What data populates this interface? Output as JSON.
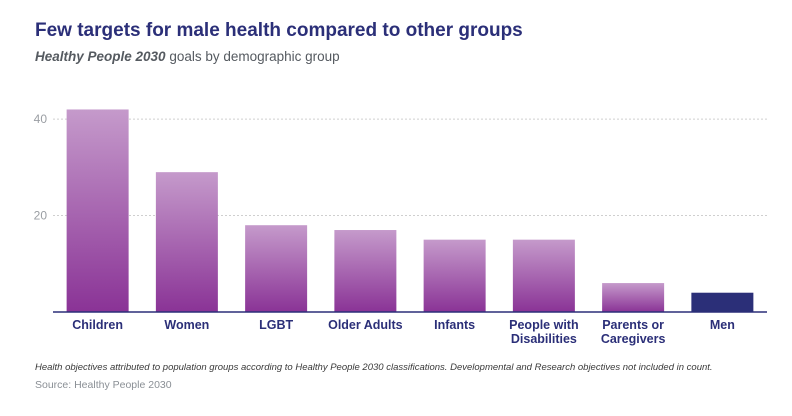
{
  "header": {
    "title": "Few targets for male health compared to other groups",
    "subtitle_em": "Healthy People 2030",
    "subtitle_rest": " goals by demographic group"
  },
  "footer": {
    "note": "Health objectives attributed to population groups according to Healthy People 2030 classifications. Developmental and Research objectives not included in count.",
    "source": "Source: Healthy People 2030"
  },
  "colors": {
    "bar_top": "#c59acb",
    "bar_bottom": "#8a3396",
    "highlight": "#2b2f78",
    "grid": "#cfcfcf",
    "axis": "#2b2f78"
  },
  "chart_data": {
    "type": "bar",
    "categories": [
      [
        "Children"
      ],
      [
        "Women"
      ],
      [
        "LGBT"
      ],
      [
        "Older Adults"
      ],
      [
        "Infants"
      ],
      [
        "People with",
        "Disabilities"
      ],
      [
        "Parents or",
        "Caregivers"
      ],
      [
        "Men"
      ]
    ],
    "values": [
      42,
      29,
      18,
      17,
      15,
      15,
      6,
      4
    ],
    "highlight_index": 7,
    "y_ticks": [
      "20",
      "40"
    ],
    "y_tick_values": [
      20,
      40
    ],
    "ylim": [
      0,
      45
    ],
    "grid": true,
    "title": "Few targets for male health compared to other groups",
    "xlabel": "",
    "ylabel": ""
  }
}
